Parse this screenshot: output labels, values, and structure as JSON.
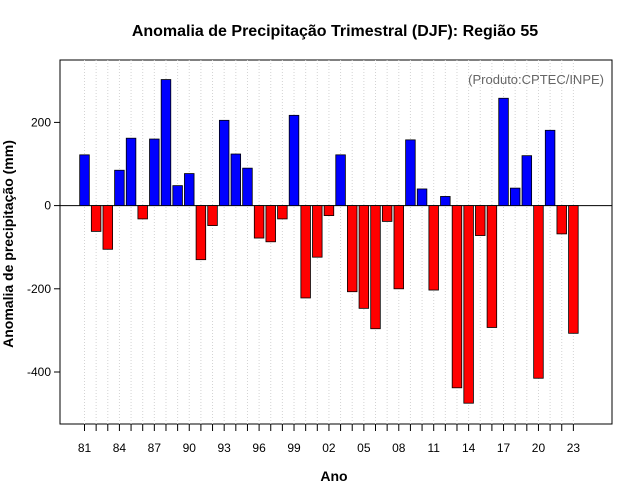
{
  "chart_data": {
    "type": "bar",
    "title": "Anomalia de Precipitação Trimestral (DJF): Região 55",
    "xlabel": "Ano",
    "ylabel": "Anomalia de precipitação (mm)",
    "credit": "(Produto:CPTEC/INPE)",
    "ylim": [
      -525,
      350
    ],
    "y_ticks": [
      -400,
      -200,
      0,
      200
    ],
    "y_tick_labels": [
      "-400",
      "-200",
      "0",
      "200"
    ],
    "x_tick_labels": [
      "81",
      "84",
      "87",
      "90",
      "93",
      "96",
      "99",
      "02",
      "05",
      "08",
      "11",
      "14",
      "17",
      "20",
      "23"
    ],
    "x_tick_label_every": 3,
    "positive_color": "#0000ff",
    "negative_color": "#ff0000",
    "categories": [
      "1981",
      "1982",
      "1983",
      "1984",
      "1985",
      "1986",
      "1987",
      "1988",
      "1989",
      "1990",
      "1991",
      "1992",
      "1993",
      "1994",
      "1995",
      "1996",
      "1997",
      "1998",
      "1999",
      "2000",
      "2001",
      "2002",
      "2003",
      "2004",
      "2005",
      "2006",
      "2007",
      "2008",
      "2009",
      "2010",
      "2011",
      "2012",
      "2013",
      "2014",
      "2015",
      "2016",
      "2017",
      "2018",
      "2019",
      "2020",
      "2021",
      "2022",
      "2023"
    ],
    "values": [
      122,
      -62,
      -105,
      85,
      162,
      -32,
      160,
      303,
      48,
      77,
      -130,
      -48,
      205,
      124,
      90,
      -78,
      -87,
      -32,
      217,
      -222,
      -124,
      -24,
      122,
      -207,
      -247,
      -296,
      -38,
      -200,
      158,
      40,
      -203,
      22,
      -438,
      -475,
      -72,
      -293,
      258,
      42,
      120,
      -415,
      181,
      -68,
      -307
    ]
  }
}
